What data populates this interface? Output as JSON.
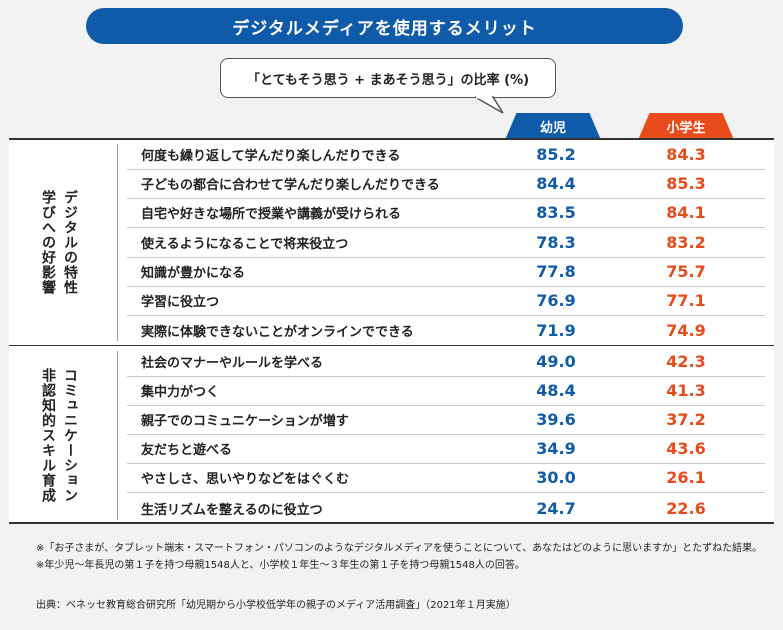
{
  "title": "デジタルメディアを使用するメリット",
  "note": "「とてもそう思う + まあそう思う」の比率 (%)",
  "columns": {
    "kid": "幼児",
    "elem": "小学生"
  },
  "colors": {
    "blue": "#0f5baa",
    "red": "#e94a1a"
  },
  "groups": [
    {
      "label_lines": [
        "デジタルの特性",
        "学びへの好影響"
      ],
      "rows": [
        {
          "label": "何度も繰り返して学んだり楽しんだりできる",
          "kid": "85.2",
          "elem": "84.3"
        },
        {
          "label": "子どもの都合に合わせて学んだり楽しんだりできる",
          "kid": "84.4",
          "elem": "85.3"
        },
        {
          "label": "自宅や好きな場所で授業や講義が受けられる",
          "kid": "83.5",
          "elem": "84.1"
        },
        {
          "label": "使えるようになることで将来役立つ",
          "kid": "78.3",
          "elem": "83.2"
        },
        {
          "label": "知識が豊かになる",
          "kid": "77.8",
          "elem": "75.7"
        },
        {
          "label": "学習に役立つ",
          "kid": "76.9",
          "elem": "77.1"
        },
        {
          "label": "実際に体験できないことがオンラインでできる",
          "kid": "71.9",
          "elem": "74.9"
        }
      ]
    },
    {
      "label_lines": [
        "コミュニケーション",
        "非認知的スキル育成"
      ],
      "rows": [
        {
          "label": "社会のマナーやルールを学べる",
          "kid": "49.0",
          "elem": "42.3"
        },
        {
          "label": "集中力がつく",
          "kid": "48.4",
          "elem": "41.3"
        },
        {
          "label": "親子でのコミュニケーションが増す",
          "kid": "39.6",
          "elem": "37.2"
        },
        {
          "label": "友だちと遊べる",
          "kid": "34.9",
          "elem": "43.6"
        },
        {
          "label": "やさしさ、思いやりなどをはぐくむ",
          "kid": "30.0",
          "elem": "26.1"
        },
        {
          "label": "生活リズムを整えるのに役立つ",
          "kid": "24.7",
          "elem": "22.6"
        }
      ]
    }
  ],
  "footnotes": [
    "※「お子さまが、タブレット端末・スマートフォン・パソコンのようなデジタルメディアを使うことについて、あなたはどのように思いますか」とたずねた結果。",
    "※年少児〜年長児の第１子を持つ母親1548人と、小学校１年生〜３年生の第１子を持つ母親1548人の回答。"
  ],
  "source": "出典：ベネッセ教育総合研究所「幼児期から小学校低学年の親子のメディア活用調査」（2021年１月実施）"
}
